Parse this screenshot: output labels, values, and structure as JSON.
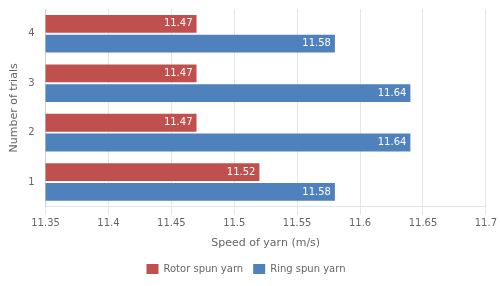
{
  "chart_data": {
    "type": "bar",
    "orientation": "horizontal",
    "categories": [
      "1",
      "2",
      "3",
      "4"
    ],
    "series": [
      {
        "name": "Rotor spun yarn",
        "color": "#c0504d",
        "values": [
          11.52,
          11.47,
          11.47,
          11.47
        ]
      },
      {
        "name": "Ring spun yarn",
        "color": "#4f81bd",
        "values": [
          11.58,
          11.64,
          11.64,
          11.58
        ]
      }
    ],
    "xlabel": "Speed of yarn (m/s)",
    "ylabel": "Number of trials",
    "xlim": [
      11.35,
      11.7
    ],
    "xticks": [
      11.35,
      11.4,
      11.45,
      11.5,
      11.55,
      11.6,
      11.65,
      11.7
    ],
    "grid": true,
    "legend": "bottom",
    "data_labels": true
  }
}
